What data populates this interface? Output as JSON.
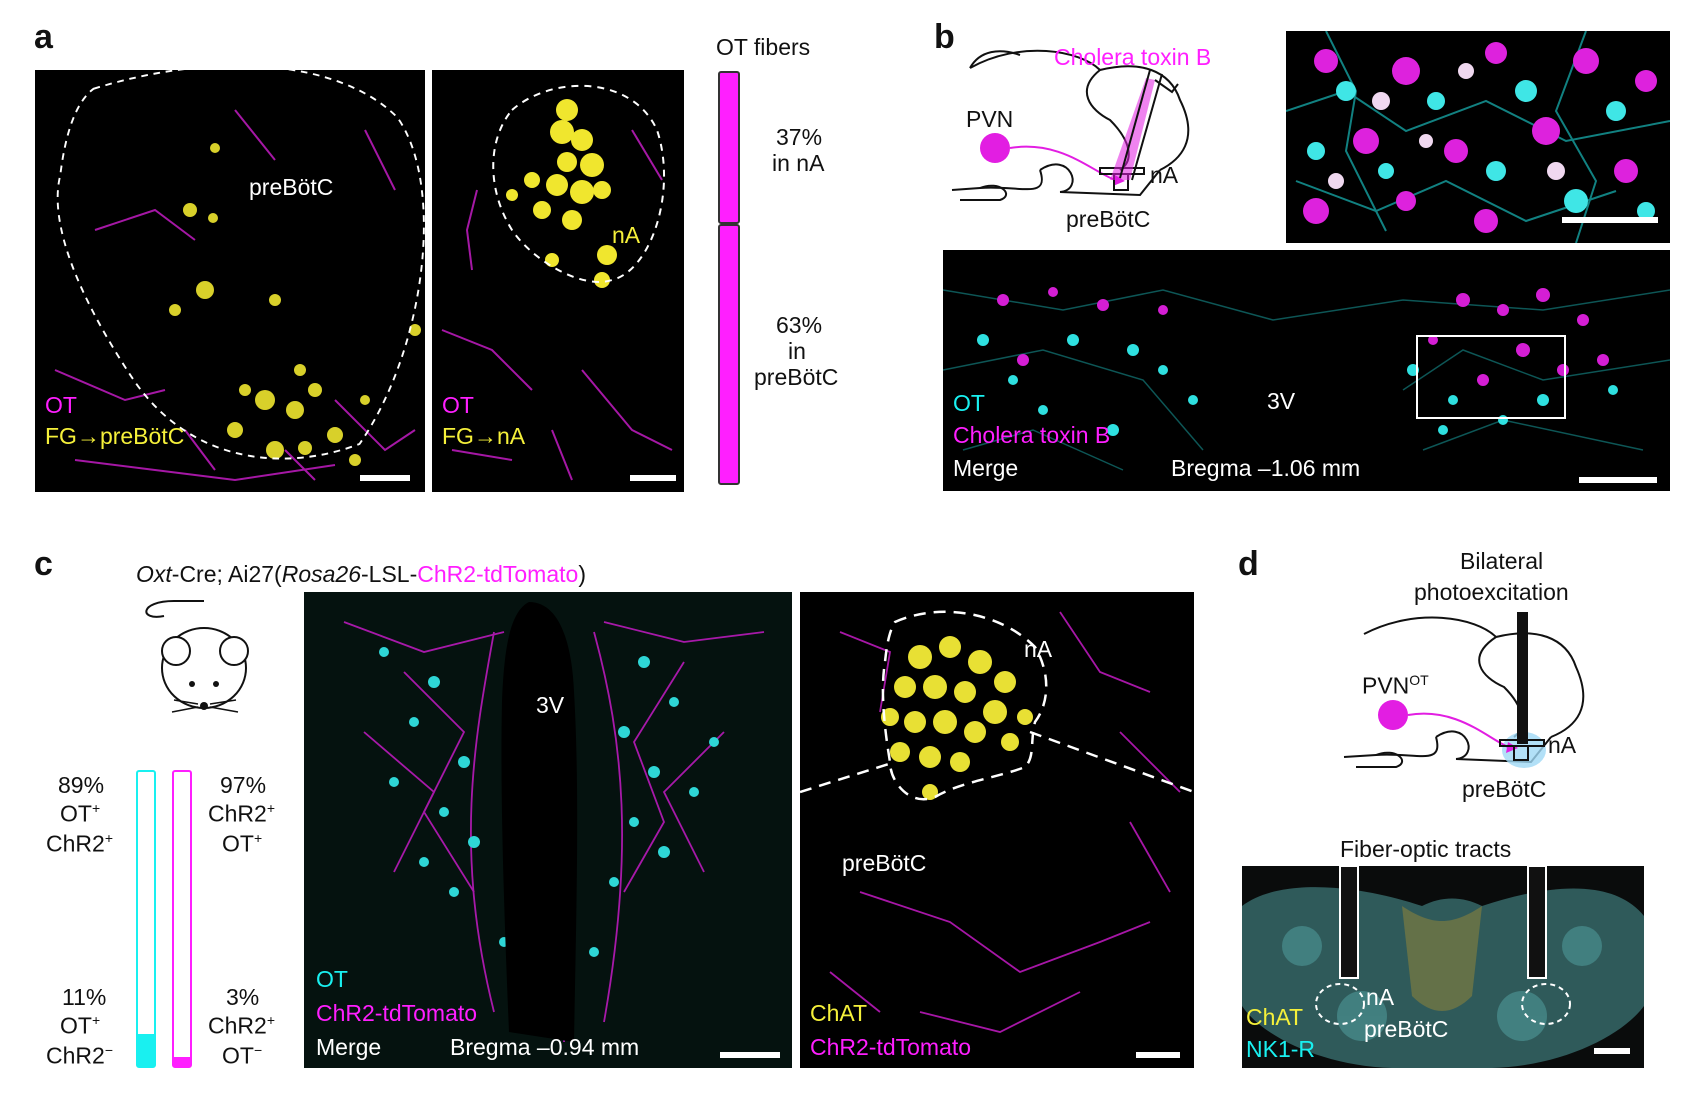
{
  "panel_labels": {
    "a": "a",
    "b": "b",
    "c": "c",
    "d": "d"
  },
  "panel_a": {
    "bar_title": "OT fibers",
    "bar_top_pct": "37%",
    "bar_top_region": "in nA",
    "bar_bottom_pct": "63%",
    "bar_bottom_in": "in",
    "bar_bottom_region": "preBötC",
    "bar_fraction_na": 0.37,
    "img1_region_label": "preBötC",
    "img1_legend_1": "OT",
    "img1_legend_2": "FG→preBötC",
    "img2_region_label": "nA",
    "img2_legend_1": "OT",
    "img2_legend_2": "FG→nA"
  },
  "panel_b": {
    "diagram_tracer": "Cholera toxin B",
    "diagram_pvn": "PVN",
    "diagram_na": "nA",
    "diagram_prebotc": "preBötC",
    "img_3v": "3V",
    "legend_1": "OT",
    "legend_2": "Cholera toxin B",
    "legend_3": "Merge",
    "bregma": "Bregma –1.06 mm"
  },
  "panel_c": {
    "genotype_1": "Oxt",
    "genotype_2": "-Cre; Ai27(",
    "genotype_3": "Rosa26",
    "genotype_4": "-LSL-",
    "genotype_5": "ChR2-tdTomato",
    "genotype_6": ")",
    "left_top_pct": "89%",
    "left_top_l1": "OT",
    "left_top_l2": "ChR2",
    "left_bottom_pct": "11%",
    "left_bottom_l1": "OT",
    "left_bottom_l2": "ChR2",
    "right_top_pct": "97%",
    "right_top_l1": "ChR2",
    "right_top_l2": "OT",
    "right_bottom_pct": "3%",
    "right_bottom_l1": "ChR2",
    "right_bottom_l2": "OT",
    "sup_plus": "+",
    "sup_minus": "−",
    "left_bar_fraction": 0.89,
    "right_bar_fraction": 0.97,
    "img1_3v": "3V",
    "img1_legend_1": "OT",
    "img1_legend_2": "ChR2-tdTomato",
    "img1_legend_3": "Merge",
    "img1_bregma": "Bregma –0.94 mm",
    "img2_na": "nA",
    "img2_prebotc": "preBötC",
    "img2_legend_1": "ChAT",
    "img2_legend_2": "ChR2-tdTomato"
  },
  "panel_d": {
    "title_1": "Bilateral",
    "title_2": "photoexcitation",
    "diagram_pvn": "PVN",
    "diagram_pvn_sup": "OT",
    "diagram_na": "nA",
    "diagram_prebotc": "preBötC",
    "img_title": "Fiber-optic tracts",
    "img_na": "nA",
    "img_prebotc": "preBötC",
    "img_legend_1": "ChAT",
    "img_legend_2": "NK1-R"
  },
  "colors": {
    "magenta": "#ff1fff",
    "yellow": "#f5f03a",
    "cyan": "#19f0f0",
    "background": "#000000"
  }
}
